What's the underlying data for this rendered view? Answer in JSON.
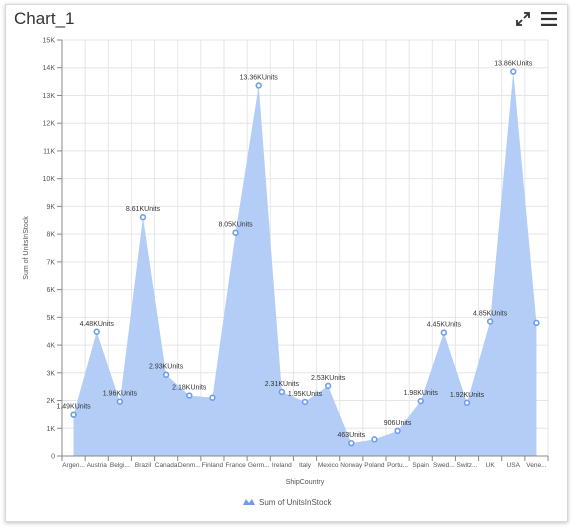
{
  "title": "Chart_1",
  "icons": {
    "expand": "expand-icon",
    "menu": "hamburger-menu-icon"
  },
  "colors": {
    "area": "#b3cdf7",
    "point": "#6d9de9",
    "grid": "#e6e6e6",
    "axis": "#888888",
    "text": "#555555"
  },
  "chart_data": {
    "type": "area",
    "categories": [
      "Argen...",
      "Austria",
      "Belgi...",
      "Brazil",
      "Canada",
      "Denm...",
      "Finland",
      "France",
      "Germ...",
      "Ireland",
      "Italy",
      "Mexico",
      "Norway",
      "Poland",
      "Portu...",
      "Spain",
      "Swed...",
      "Switz...",
      "UK",
      "USA",
      "Vene..."
    ],
    "values": [
      1490,
      4480,
      1960,
      8610,
      2930,
      2180,
      2100,
      8050,
      13360,
      2310,
      1950,
      2530,
      463,
      600,
      906,
      1980,
      4450,
      1920,
      4850,
      13860,
      4800
    ],
    "data_labels": [
      "1.49KUnits",
      "4.48KUnits",
      "1.96KUnits",
      "8.61KUnits",
      "2.93KUnits",
      "2.18KUnits",
      "",
      "8.05KUnits",
      "13.36KUnits",
      "2.31KUnits",
      "1.95KUnits",
      "2.53KUnits",
      "463Units",
      "",
      "906Units",
      "1.98KUnits",
      "4.45KUnits",
      "1.92KUnits",
      "4.85KUnits",
      "13.86KUnits",
      ""
    ],
    "y_ticks": [
      "0",
      "1K",
      "2K",
      "3K",
      "4K",
      "5K",
      "6K",
      "7K",
      "8K",
      "9K",
      "10K",
      "11K",
      "12K",
      "13K",
      "14K",
      "15K"
    ],
    "ylim": [
      0,
      15000
    ],
    "xlabel": "ShipCountry",
    "ylabel": "Sum of UnitsInStock",
    "legend": {
      "label": "Sum of UnitsInStock",
      "position": "bottom"
    },
    "grid": true
  }
}
